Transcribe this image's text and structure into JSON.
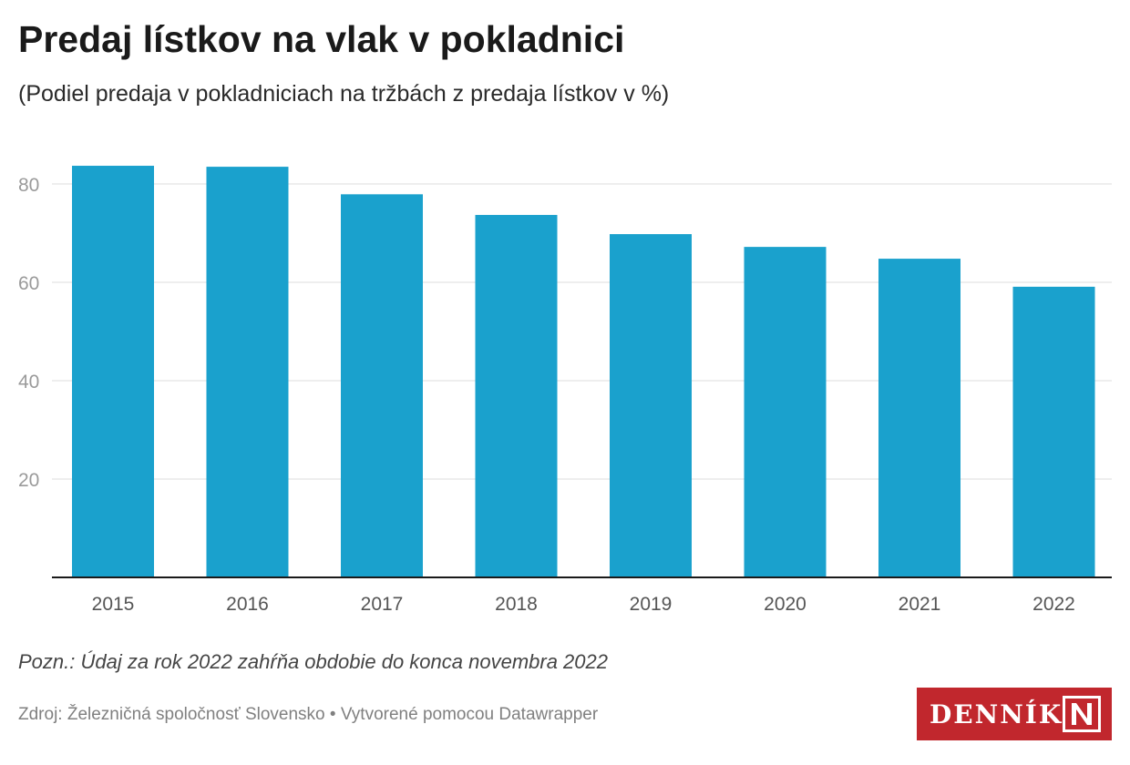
{
  "title": "Predaj lístkov na vlak v pokladnici",
  "subtitle": "(Podiel predaja v pokladniciach na tržbách z predaja lístkov v %)",
  "note": "Pozn.: Údaj za rok 2022 zahŕňa obdobie do konca novembra 2022",
  "source": "Zdroj: Železničná spoločnosť Slovensko • Vytvorené pomocou Datawrapper",
  "brand": {
    "name": "DENNÍK",
    "mark": "N",
    "color": "#c1272d"
  },
  "chart_data": {
    "type": "bar",
    "categories": [
      "2015",
      "2016",
      "2017",
      "2018",
      "2019",
      "2020",
      "2021",
      "2022"
    ],
    "values": [
      83.7,
      83.5,
      77.9,
      73.7,
      69.8,
      67.2,
      64.8,
      59.1
    ],
    "ylim": [
      0,
      80
    ],
    "yticks": [
      20,
      40,
      60,
      80
    ],
    "grid": true,
    "legend": "none",
    "bar_color": "#1aa1cd"
  }
}
